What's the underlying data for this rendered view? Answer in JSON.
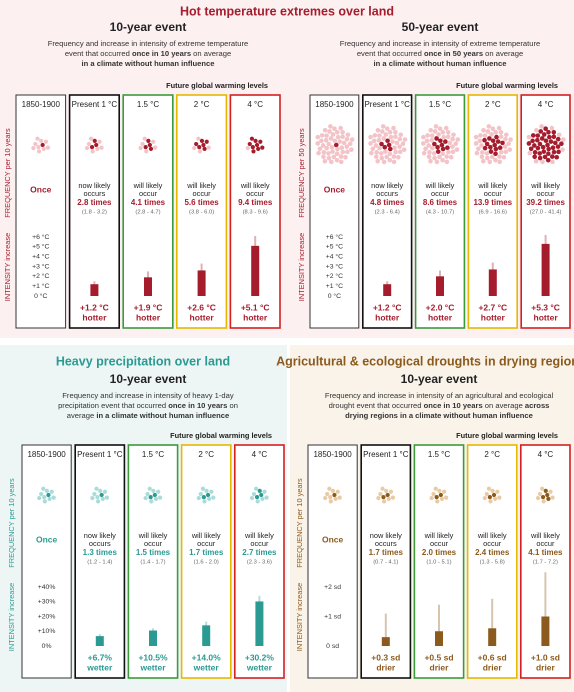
{
  "section_titles": [
    "Hot temperature extremes over land",
    "Heavy precipitation over land",
    "Agricultural & ecological droughts in drying regions"
  ],
  "chart_data": [
    {
      "type": "bar",
      "title": "10-year event",
      "description": [
        [
          "Frequency and increase in intensity of extreme temperature"
        ],
        [
          "event that occurred ",
          {
            "text": "once in 10 years",
            "bold": true
          },
          " on average"
        ],
        [
          {
            "text": "in a climate without human influence",
            "bold": true
          }
        ]
      ],
      "annotation": "Future global warming levels",
      "categories": [
        "1850-1900",
        "Present 1 °C",
        "1.5 °C",
        "2 °C",
        "4 °C"
      ],
      "column_colors": [
        "#333333",
        "#111111",
        "#3c9a3c",
        "#e6b800",
        "#d42020"
      ],
      "color": "#a51d2d",
      "light_color": "#f3c3c8",
      "background": "#fcf0f1",
      "frequency_label": "FREQUENCY per 10 years",
      "intensity_label": "INTENSITY increase",
      "dots_total": 10,
      "dots_dark": [
        1,
        3,
        4,
        6,
        9
      ],
      "frequency": [
        {
          "times": "Once"
        },
        {
          "lines": [
            "now likely",
            "occurs"
          ],
          "times": "2.8 times",
          "range": "(1.8 - 3.2)"
        },
        {
          "lines": [
            "will likely",
            "occur"
          ],
          "times": "4.1 times",
          "range": "(2.8 - 4.7)"
        },
        {
          "lines": [
            "will likely",
            "occur"
          ],
          "times": "5.6 times",
          "range": "(3.8 - 6.0)"
        },
        {
          "lines": [
            "will likely",
            "occur"
          ],
          "times": "9.4 times",
          "range": "(8.3 - 9.6)"
        }
      ],
      "values": [
        null,
        1.2,
        1.9,
        2.6,
        5.1
      ],
      "ranges": [
        null,
        [
          1.0,
          1.5
        ],
        [
          1.6,
          2.5
        ],
        [
          2.2,
          3.3
        ],
        [
          4.5,
          6.1
        ]
      ],
      "value_labels": [
        null,
        "+1.2 °C",
        "+1.9 °C",
        "+2.6 °C",
        "+5.1 °C"
      ],
      "value_word": "hotter",
      "ylim": [
        0,
        6
      ],
      "yticks": [
        {
          "value": 0,
          "label": "0 °C"
        },
        {
          "value": 1,
          "label": "+1 °C"
        },
        {
          "value": 2,
          "label": "+2 °C"
        },
        {
          "value": 3,
          "label": "+3 °C"
        },
        {
          "value": 4,
          "label": "+4 °C"
        },
        {
          "value": 5,
          "label": "+5 °C"
        },
        {
          "value": 6,
          "label": "+6 °C"
        }
      ]
    },
    {
      "type": "bar",
      "title": "50-year event",
      "description": [
        [
          "Frequency and increase in intensity of extreme temperature"
        ],
        [
          "event that occurred ",
          {
            "text": "once in 50 years",
            "bold": true
          },
          " on average"
        ],
        [
          {
            "text": "in a climate without human influence",
            "bold": true
          }
        ]
      ],
      "annotation": "Future global warming levels",
      "categories": [
        "1850-1900",
        "Present 1 °C",
        "1.5 °C",
        "2 °C",
        "4 °C"
      ],
      "column_colors": [
        "#333333",
        "#111111",
        "#3c9a3c",
        "#e6b800",
        "#d42020"
      ],
      "color": "#a51d2d",
      "light_color": "#f3c3c8",
      "background": "#fcf0f1",
      "frequency_label": "FREQUENCY per 50 years",
      "intensity_label": "INTENSITY increase",
      "dots_total": 50,
      "dots_dark": [
        1,
        5,
        9,
        14,
        39
      ],
      "frequency": [
        {
          "times": "Once"
        },
        {
          "lines": [
            "now likely",
            "occurs"
          ],
          "times": "4.8 times",
          "range": "(2.3 - 6.4)"
        },
        {
          "lines": [
            "will likely",
            "occur"
          ],
          "times": "8.6 times",
          "range": "(4.3 - 10.7)"
        },
        {
          "lines": [
            "will likely",
            "occur"
          ],
          "times": "13.9 times",
          "range": "(6.9 - 16.6)"
        },
        {
          "lines": [
            "will likely",
            "occur"
          ],
          "times": "39.2 times",
          "range": "(27.0 - 41.4)"
        }
      ],
      "values": [
        null,
        1.2,
        2.0,
        2.7,
        5.3
      ],
      "ranges": [
        null,
        [
          0.9,
          1.5
        ],
        [
          1.6,
          2.6
        ],
        [
          2.2,
          3.4
        ],
        [
          4.6,
          6.2
        ]
      ],
      "value_labels": [
        null,
        "+1.2 °C",
        "+2.0 °C",
        "+2.7 °C",
        "+5.3 °C"
      ],
      "value_word": "hotter",
      "ylim": [
        0,
        6
      ],
      "yticks": [
        {
          "value": 0,
          "label": "0 °C"
        },
        {
          "value": 1,
          "label": "+1 °C"
        },
        {
          "value": 2,
          "label": "+2 °C"
        },
        {
          "value": 3,
          "label": "+3 °C"
        },
        {
          "value": 4,
          "label": "+4 °C"
        },
        {
          "value": 5,
          "label": "+5 °C"
        },
        {
          "value": 6,
          "label": "+6 °C"
        }
      ]
    },
    {
      "type": "bar",
      "title": "10-year event",
      "description": [
        [
          "Frequency and increase in intensity of heavy 1-day"
        ],
        [
          "precipitation event that occurred ",
          {
            "text": "once in 10 years",
            "bold": true
          },
          " on"
        ],
        [
          "average ",
          {
            "text": "in a climate without human influence",
            "bold": true
          }
        ]
      ],
      "annotation": "Future global warming levels",
      "categories": [
        "1850-1900",
        "Present 1 °C",
        "1.5 °C",
        "2 °C",
        "4 °C"
      ],
      "column_colors": [
        "#333333",
        "#111111",
        "#3c9a3c",
        "#e6b800",
        "#d42020"
      ],
      "color": "#2a9a92",
      "light_color": "#a9dcd8",
      "background": "#eef6f5",
      "frequency_label": "FREQUENCY per 10 years",
      "intensity_label": "INTENSITY increase",
      "dots_total": 10,
      "dots_dark": [
        1,
        1,
        2,
        2,
        3
      ],
      "frequency": [
        {
          "times": "Once"
        },
        {
          "lines": [
            "now likely",
            "occurs"
          ],
          "times": "1.3 times",
          "range": "(1.2 - 1.4)"
        },
        {
          "lines": [
            "will likely",
            "occur"
          ],
          "times": "1.5 times",
          "range": "(1.4 - 1.7)"
        },
        {
          "lines": [
            "will likely",
            "occur"
          ],
          "times": "1.7 times",
          "range": "(1.6 - 2.0)"
        },
        {
          "lines": [
            "will likely",
            "occur"
          ],
          "times": "2.7 times",
          "range": "(2.3 - 3.6)"
        }
      ],
      "values": [
        null,
        6.7,
        10.5,
        14.0,
        30.2
      ],
      "ranges": [
        null,
        [
          5.5,
          8
        ],
        [
          8.5,
          12
        ],
        [
          11,
          16.5
        ],
        [
          24,
          34
        ]
      ],
      "value_labels": [
        null,
        "+6.7%",
        "+10.5%",
        "+14.0%",
        "+30.2%"
      ],
      "value_word": "wetter",
      "ylim": [
        0,
        40
      ],
      "yticks": [
        {
          "value": 0,
          "label": "0%"
        },
        {
          "value": 10,
          "label": "+10%"
        },
        {
          "value": 20,
          "label": "+20%"
        },
        {
          "value": 30,
          "label": "+30%"
        },
        {
          "value": 40,
          "label": "+40%"
        }
      ]
    },
    {
      "type": "bar",
      "title": "10-year event",
      "description": [
        [
          "Frequency and increase in intensity of an agricultural and ecological"
        ],
        [
          "drought event that occurred ",
          {
            "text": "once in 10 years",
            "bold": true
          },
          " on average ",
          {
            "text": "across",
            "bold": true
          }
        ],
        [
          {
            "text": "drying regions in a climate without human influence",
            "bold": true
          }
        ]
      ],
      "annotation": "Future global warming levels",
      "categories": [
        "1850-1900",
        "Present 1 °C",
        "1.5 °C",
        "2 °C",
        "4 °C"
      ],
      "column_colors": [
        "#333333",
        "#111111",
        "#3c9a3c",
        "#e6b800",
        "#d42020"
      ],
      "color": "#8c5a1c",
      "light_color": "#e9caa2",
      "background": "#f9f3ea",
      "frequency_label": "FREQUENCY per 10 years",
      "intensity_label": "INTENSITY increase",
      "dots_total": 10,
      "dots_dark": [
        1,
        2,
        2,
        2,
        4
      ],
      "frequency": [
        {
          "times": "Once"
        },
        {
          "lines": [
            "now likely",
            "occurs"
          ],
          "times": "1.7 times",
          "range": "(0.7 - 4.1)"
        },
        {
          "lines": [
            "will likely",
            "occur"
          ],
          "times": "2.0 times",
          "range": "(1.0 - 5.1)"
        },
        {
          "lines": [
            "will likely",
            "occur"
          ],
          "times": "2.4 times",
          "range": "(1.3 - 5.8)"
        },
        {
          "lines": [
            "will likely",
            "occur"
          ],
          "times": "4.1 times",
          "range": "(1.7 - 7.2)"
        }
      ],
      "values": [
        null,
        0.3,
        0.5,
        0.6,
        1.0
      ],
      "ranges": [
        null,
        [
          0.1,
          1.1
        ],
        [
          0.2,
          1.4
        ],
        [
          0.3,
          1.6
        ],
        [
          0.4,
          2.5
        ]
      ],
      "value_labels": [
        null,
        "+0.3 sd",
        "+0.5 sd",
        "+0.6 sd",
        "+1.0 sd"
      ],
      "value_word": "drier",
      "ylim": [
        0,
        2
      ],
      "yticks": [
        {
          "value": 0,
          "label": "0 sd"
        },
        {
          "value": 1,
          "label": "+1 sd"
        },
        {
          "value": 2,
          "label": "+2 sd"
        }
      ]
    }
  ]
}
